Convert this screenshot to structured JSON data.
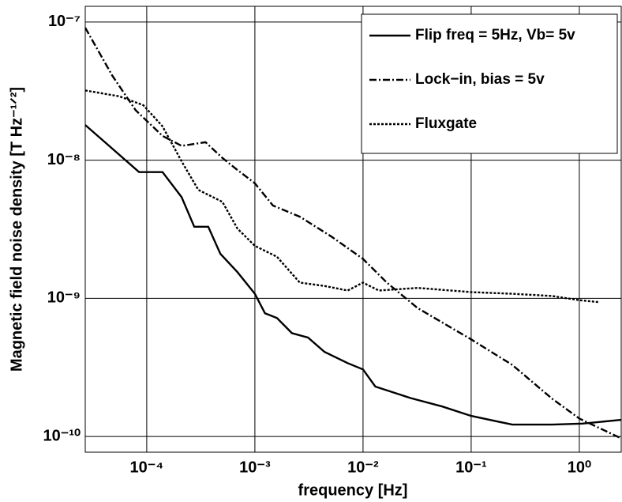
{
  "chart_data": {
    "type": "line",
    "xlabel": "frequency [Hz]",
    "ylabel": "Magnetic field noise density [T Hz⁻¹ᐟ²]",
    "xscale": "log",
    "yscale": "log",
    "grid": true,
    "legend_position": "upper right",
    "xlim": [
      2.7e-05,
      2.44
    ],
    "ylim": [
      7.7e-11,
      1.3e-07
    ],
    "xticks": [
      {
        "value": 0.0001,
        "label": "10⁻⁴"
      },
      {
        "value": 0.001,
        "label": "10⁻³"
      },
      {
        "value": 0.01,
        "label": "10⁻²"
      },
      {
        "value": 0.1,
        "label": "10⁻¹"
      },
      {
        "value": 1,
        "label": "10⁰"
      }
    ],
    "yticks": [
      {
        "value": 1e-10,
        "label": "10⁻¹⁰"
      },
      {
        "value": 1e-09,
        "label": "10⁻⁹"
      },
      {
        "value": 1e-08,
        "label": "10⁻⁸"
      },
      {
        "value": 1e-07,
        "label": "10⁻⁷"
      }
    ],
    "series": [
      {
        "name": "Flip freq = 5Hz, Vb= 5v",
        "color": "#000000",
        "dash": "solid",
        "x": [
          2.7e-05,
          8.5e-05,
          0.00014,
          0.00021,
          0.000275,
          0.00037,
          0.00048,
          0.00069,
          0.001,
          0.00124,
          0.0016,
          0.0022,
          0.0031,
          0.0044,
          0.0072,
          0.01,
          0.013,
          0.0275,
          0.054,
          0.1,
          0.24,
          0.56,
          1.07,
          2.44
        ],
        "values": [
          1.8e-08,
          8.2e-09,
          8.2e-09,
          5.4e-09,
          3.3e-09,
          3.3e-09,
          2.1e-09,
          1.55e-09,
          1.08e-09,
          7.8e-10,
          7.2e-10,
          5.6e-10,
          5.2e-10,
          4.1e-10,
          3.4e-10,
          3.06e-10,
          2.3e-10,
          1.9e-10,
          1.65e-10,
          1.41e-10,
          1.22e-10,
          1.22e-10,
          1.24e-10,
          1.32e-10
        ]
      },
      {
        "name": "Lock−in, bias = 5v",
        "color": "#000000",
        "dash": "dashdot",
        "x": [
          2.7e-05,
          4.8e-05,
          7.9e-05,
          0.00014,
          0.00021,
          0.00035,
          0.0005,
          0.00069,
          0.001,
          0.00147,
          0.0026,
          0.0051,
          0.01,
          0.0166,
          0.032,
          0.1,
          0.24,
          0.56,
          1,
          2.44
        ],
        "values": [
          9.1e-08,
          4.1e-08,
          2.3e-08,
          1.5e-08,
          1.27e-08,
          1.35e-08,
          1.04e-08,
          8.5e-09,
          6.8e-09,
          4.7e-09,
          3.9e-09,
          2.8e-09,
          1.93e-09,
          1.3e-09,
          8.5e-10,
          5.05e-10,
          3.3e-10,
          1.88e-10,
          1.35e-10,
          9.7e-11
        ]
      },
      {
        "name": "Fluxgate",
        "color": "#000000",
        "dash": "dotted",
        "x": [
          2.7e-05,
          5.6e-05,
          9.3e-05,
          0.00014,
          0.00021,
          0.0003,
          0.0005,
          0.00069,
          0.001,
          0.0016,
          0.0026,
          0.0044,
          0.0072,
          0.01,
          0.014,
          0.032,
          0.1,
          0.24,
          0.56,
          1,
          1.5
        ],
        "values": [
          3.2e-08,
          2.9e-08,
          2.5e-08,
          1.76e-08,
          9.8e-09,
          6.1e-09,
          5e-09,
          3.2e-09,
          2.4e-09,
          2e-09,
          1.3e-09,
          1.23e-09,
          1.14e-09,
          1.3e-09,
          1.14e-09,
          1.19e-09,
          1.11e-09,
          1.08e-09,
          1.04e-09,
          9.7e-10,
          9.4e-10
        ]
      }
    ]
  }
}
